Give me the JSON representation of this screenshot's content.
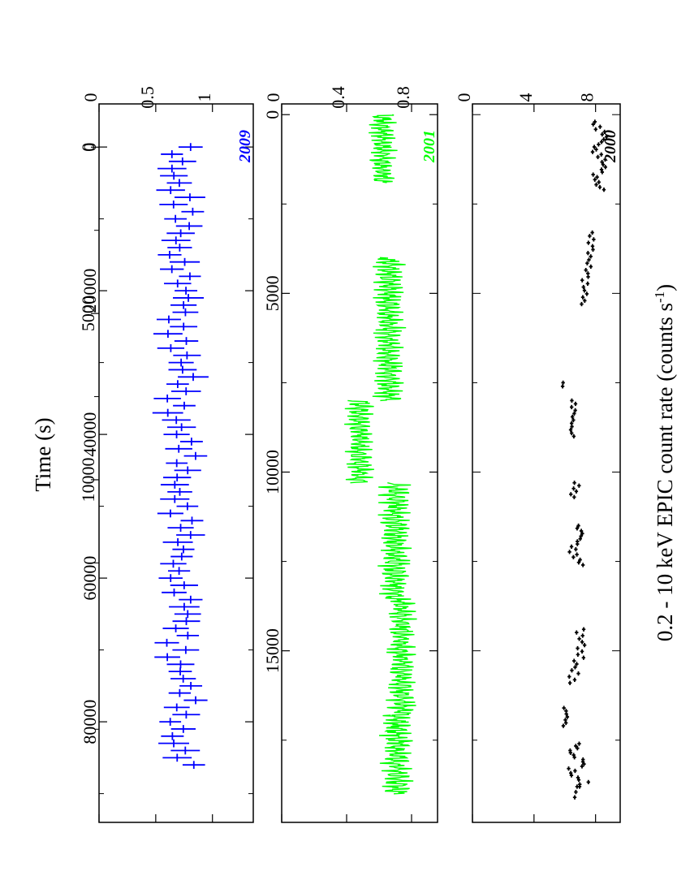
{
  "figure": {
    "ylabel_main": "0.2 - 10 keV EPIC count rate (counts s",
    "ylabel_sup": "-1",
    "ylabel_close": ")",
    "xlabel": "Time (s)",
    "orientation": "rotated-90"
  },
  "chart_data": [
    {
      "type": "scatter",
      "year_label": "2000",
      "color": "#000000",
      "xlim": [
        -300,
        19800
      ],
      "ylim": [
        0,
        9.6
      ],
      "x_ticks": [],
      "y_ticks": [
        0,
        4,
        8
      ],
      "y_tick_labels": [
        "0",
        "4",
        "8"
      ],
      "errorbars": true,
      "segments": [
        {
          "x_range": [
            200,
            2100
          ],
          "y_mean": 8.3,
          "y_amp": 0.55,
          "n": 28
        },
        {
          "x_range": [
            3300,
            5300
          ],
          "y_mean": 7.5,
          "y_amp": 0.5,
          "n": 22
        },
        {
          "x_range": [
            7500,
            7600
          ],
          "y_mean": 5.9,
          "y_amp": 0.1,
          "n": 2
        },
        {
          "x_range": [
            8000,
            9000
          ],
          "y_mean": 6.7,
          "y_amp": 0.4,
          "n": 12
        },
        {
          "x_range": [
            10300,
            10700
          ],
          "y_mean": 6.5,
          "y_amp": 0.4,
          "n": 6
        },
        {
          "x_range": [
            11500,
            12600
          ],
          "y_mean": 6.8,
          "y_amp": 0.55,
          "n": 16
        },
        {
          "x_range": [
            14400,
            15900
          ],
          "y_mean": 6.8,
          "y_amp": 0.6,
          "n": 18
        },
        {
          "x_range": [
            16600,
            17100
          ],
          "y_mean": 5.9,
          "y_amp": 0.35,
          "n": 7
        },
        {
          "x_range": [
            17600,
            18800
          ],
          "y_mean": 6.8,
          "y_amp": 0.7,
          "n": 20
        },
        {
          "x_range": [
            18800,
            19100
          ],
          "y_mean": 6.8,
          "y_amp": 0.2,
          "n": 3
        }
      ]
    },
    {
      "type": "line",
      "year_label": "2001",
      "color": "#00ff00",
      "xlim": [
        -300,
        19800
      ],
      "ylim": [
        0,
        0.96
      ],
      "x_ticks": [
        0,
        5000,
        10000,
        15000
      ],
      "x_tick_labels": [
        "0",
        "5000",
        "10000",
        "15000"
      ],
      "y_ticks": [
        0,
        0.4,
        0.8
      ],
      "y_tick_labels": [
        "0",
        "0.4",
        "0.8"
      ],
      "segments": [
        {
          "x_range": [
            0,
            1900
          ],
          "y_mean": 0.62,
          "y_amp": 0.09
        },
        {
          "x_range": [
            4000,
            8000
          ],
          "y_mean": 0.66,
          "y_amp": 0.1
        },
        {
          "x_range": [
            8000,
            10300
          ],
          "y_mean": 0.48,
          "y_amp": 0.09
        },
        {
          "x_range": [
            10300,
            13600
          ],
          "y_mean": 0.7,
          "y_amp": 0.1
        },
        {
          "x_range": [
            13600,
            16800
          ],
          "y_mean": 0.74,
          "y_amp": 0.09
        },
        {
          "x_range": [
            16800,
            19000
          ],
          "y_mean": 0.71,
          "y_amp": 0.1
        }
      ]
    },
    {
      "type": "scatter",
      "year_label": "2009",
      "color": "#0000ff",
      "xlim": [
        -6000,
        94000
      ],
      "ylim": [
        0,
        1.36
      ],
      "x_ticks": [
        0,
        20000,
        40000,
        60000,
        80000
      ],
      "x_tick_labels": [
        "0",
        "20000",
        "40000",
        "60000",
        "80000"
      ],
      "y_ticks": [
        0,
        0.5,
        1
      ],
      "y_tick_labels": [
        "0",
        "0.5",
        "1"
      ],
      "errorbars": true,
      "segments": [
        {
          "x_range": [
            0,
            86000
          ],
          "y_mean": 0.72,
          "y_amp": 0.13,
          "n": 87
        }
      ],
      "x_axis2": {
        "xlim": [
          -1300,
          20300
        ],
        "ticks": [
          0,
          5000,
          10000
        ],
        "tick_labels": [
          "0",
          "5000",
          "10000"
        ]
      }
    }
  ]
}
